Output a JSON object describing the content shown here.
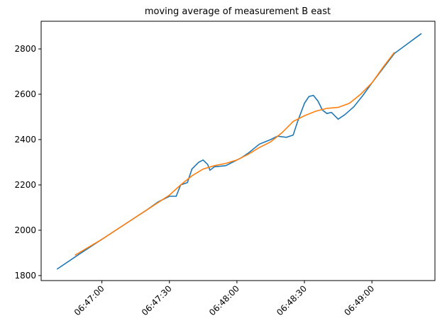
{
  "chart_data": {
    "type": "line",
    "title": "moving average of measurement B east",
    "xlim": [
      "06:46:33",
      "06:49:28"
    ],
    "ylim": [
      1778,
      2922
    ],
    "xticks": [
      "06:47:00",
      "06:47:30",
      "06:48:00",
      "06:48:30",
      "06:49:00"
    ],
    "yticks": [
      1800,
      2000,
      2200,
      2400,
      2600,
      2800
    ],
    "series": [
      {
        "color": "#1f77b4",
        "x": [
          "06:46:40",
          "06:46:50",
          "06:47:00",
          "06:47:10",
          "06:47:20",
          "06:47:25",
          "06:47:30",
          "06:47:33",
          "06:47:35",
          "06:47:38",
          "06:47:40",
          "06:47:43",
          "06:47:45",
          "06:47:47",
          "06:47:48",
          "06:47:50",
          "06:47:55",
          "06:47:58",
          "06:48:02",
          "06:48:05",
          "06:48:10",
          "06:48:15",
          "06:48:18",
          "06:48:22",
          "06:48:25",
          "06:48:27",
          "06:48:30",
          "06:48:32",
          "06:48:34",
          "06:48:36",
          "06:48:38",
          "06:48:40",
          "06:48:42",
          "06:48:45",
          "06:48:48",
          "06:48:52",
          "06:48:56",
          "06:49:00",
          "06:49:05",
          "06:49:10",
          "06:49:22"
        ],
        "values": [
          1828,
          1895,
          1960,
          2025,
          2090,
          2125,
          2150,
          2150,
          2200,
          2210,
          2270,
          2300,
          2310,
          2290,
          2265,
          2280,
          2285,
          2300,
          2320,
          2340,
          2380,
          2400,
          2415,
          2410,
          2420,
          2480,
          2560,
          2590,
          2595,
          2570,
          2530,
          2515,
          2520,
          2490,
          2510,
          2545,
          2595,
          2650,
          2715,
          2780,
          2868
        ]
      },
      {
        "color": "#ff7f0e",
        "x": [
          "06:46:48",
          "06:47:00",
          "06:47:10",
          "06:47:20",
          "06:47:30",
          "06:47:35",
          "06:47:40",
          "06:47:45",
          "06:47:50",
          "06:47:55",
          "06:48:00",
          "06:48:05",
          "06:48:10",
          "06:48:15",
          "06:48:20",
          "06:48:25",
          "06:48:30",
          "06:48:35",
          "06:48:40",
          "06:48:45",
          "06:48:50",
          "06:48:55",
          "06:49:00",
          "06:49:05",
          "06:49:10"
        ],
        "values": [
          1890,
          1960,
          2025,
          2090,
          2155,
          2200,
          2240,
          2270,
          2285,
          2295,
          2310,
          2335,
          2365,
          2390,
          2430,
          2480,
          2505,
          2525,
          2538,
          2542,
          2560,
          2600,
          2650,
          2720,
          2785
        ]
      }
    ]
  }
}
